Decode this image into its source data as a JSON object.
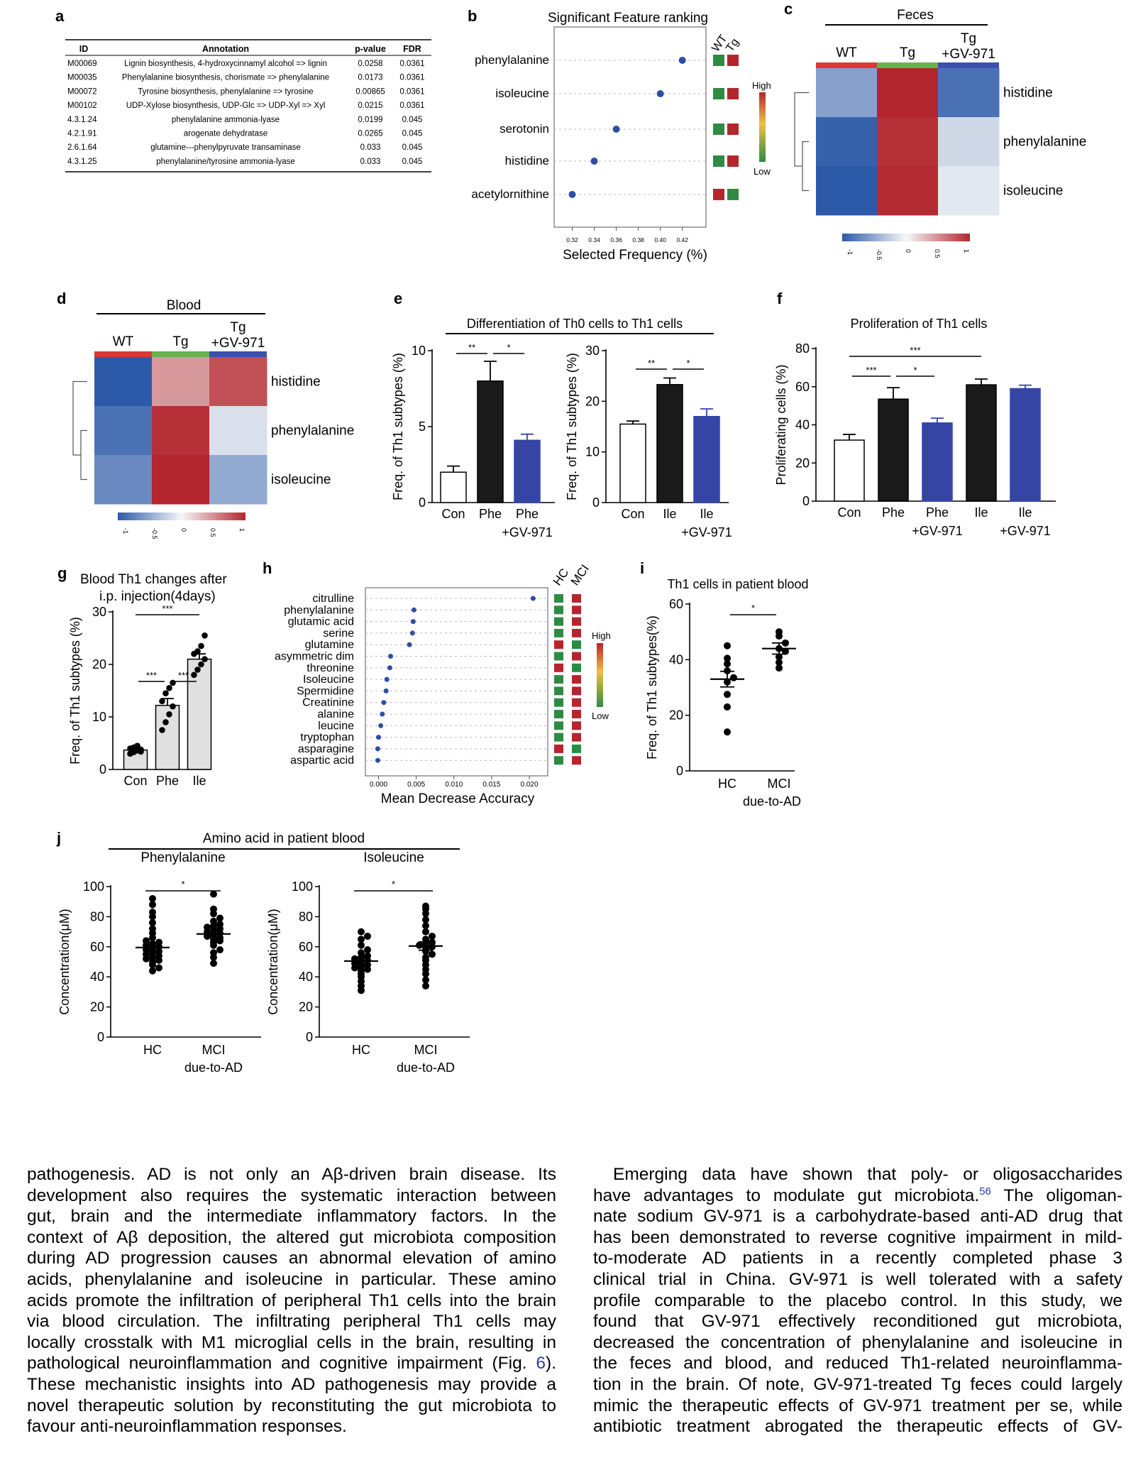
{
  "figure": {
    "panel_letters": {
      "a": "a",
      "b": "b",
      "c": "c",
      "d": "d",
      "e": "e",
      "f": "f",
      "g": "g",
      "h": "h",
      "i": "i",
      "j": "j"
    },
    "panel_a": {
      "headers": [
        "ID",
        "Annotation",
        "p-value",
        "FDR"
      ],
      "rows": [
        [
          "M00069",
          "Lignin biosynthesis, 4-hydroxycinnamyl alcohol => lignin",
          "0.0258",
          "0.0361"
        ],
        [
          "M00035",
          "Phenylalanine biosynthesis, chorismate => phenylalanine",
          "0.0173",
          "0.0361"
        ],
        [
          "M00072",
          "Tyrosine biosynthesis, phenylalanine => tyrosine",
          "0.00865",
          "0.0361"
        ],
        [
          "M00102",
          "UDP-Xylose biosynthesis, UDP-Glc => UDP-Xyl => Xyl",
          "0.0215",
          "0.0361"
        ],
        [
          "4.3.1.24",
          "phenylalanine ammonia-lyase",
          "0.0199",
          "0.045"
        ],
        [
          "4.2.1.91",
          "arogenate dehydratase",
          "0.0265",
          "0.045"
        ],
        [
          "2.6.1.64",
          "glutamine---phenylpyruvate transaminase",
          "0.033",
          "0.045"
        ],
        [
          "4.3.1.25",
          "phenylalanine/tyrosine ammonia-lyase",
          "0.033",
          "0.045"
        ]
      ]
    },
    "panel_b": {
      "title": "Significant Feature ranking",
      "xlabel": "Selected Frequency (%)",
      "col_labels": [
        "WT",
        "Tg"
      ],
      "legend_high": "High",
      "legend_low": "Low",
      "xticks": [
        "0.32",
        "0.34",
        "0.36",
        "0.38",
        "0.40",
        "0.42"
      ],
      "features": [
        "phenylalanine",
        "isoleucine",
        "serotonin",
        "histidine",
        "acetylornithine"
      ],
      "values": [
        0.42,
        0.4,
        0.36,
        0.34,
        0.32
      ],
      "tiles": [
        [
          "#2e8b43",
          "#b3262e"
        ],
        [
          "#2e8b43",
          "#b3262e"
        ],
        [
          "#2e8b43",
          "#b3262e"
        ],
        [
          "#2e8b43",
          "#b3262e"
        ],
        [
          "#b3262e",
          "#2e8b43"
        ]
      ]
    },
    "panel_c": {
      "title": "Feces",
      "groups": [
        "WT",
        "Tg",
        "Tg\n+GV-971"
      ],
      "group_colors": [
        "#d93a33",
        "#69b24e",
        "#3a4fb0"
      ],
      "rows": [
        "histidine",
        "phenylalanine",
        "isoleucine"
      ],
      "values": [
        [
          -0.55,
          1.0,
          -0.85
        ],
        [
          -0.95,
          0.95,
          -0.2
        ],
        [
          -1.0,
          0.98,
          -0.1
        ]
      ],
      "scale_ticks": [
        "-1",
        "-0.5",
        "0",
        "0.5",
        "1"
      ]
    },
    "panel_d": {
      "title": "Blood",
      "groups": [
        "WT",
        "Tg",
        "Tg\n+GV-971"
      ],
      "group_colors": [
        "#d93a33",
        "#69b24e",
        "#3a4fb0"
      ],
      "rows": [
        "histidine",
        "phenylalanine",
        "isoleucine"
      ],
      "values": [
        [
          -1.0,
          0.45,
          0.8
        ],
        [
          -0.85,
          0.95,
          -0.15
        ],
        [
          -0.7,
          1.0,
          -0.5
        ]
      ],
      "scale_ticks": [
        "-1",
        "-0.5",
        "0",
        "0.5",
        "1"
      ]
    },
    "panel_e": {
      "title": "Differentiation of Th0 cells to Th1 cells",
      "ylabel": "Freq. of Th1 subtypes (%)"
    },
    "panel_f": {
      "title": "Proliferation of Th1 cells",
      "ylabel": "Proliferating cells (%)"
    },
    "panel_g": {
      "title": "Blood Th1 changes after\ni.p. injection(4days)",
      "ylabel": "Freq. of Th1 subtypes (%)"
    },
    "panel_h": {
      "xlabel": "Mean Decrease Accuracy",
      "col_labels": [
        "HC",
        "MCI"
      ],
      "legend_high": "High",
      "legend_low": "Low",
      "xticks": [
        "0.000",
        "0.005",
        "0.010",
        "0.015",
        "0.020"
      ],
      "features": [
        "citrulline",
        "phenylalanine",
        "glutamic acid",
        "serine",
        "glutamine",
        "asymmetric dim",
        "threonine",
        "Isoleucine",
        "Spermidine",
        "Creatinine",
        "alanine",
        "leucine",
        "tryptophan",
        "asparagine",
        "aspartic acid"
      ],
      "values": [
        0.0205,
        0.0047,
        0.0046,
        0.0045,
        0.0041,
        0.0016,
        0.0015,
        0.0011,
        0.001,
        0.0007,
        0.0005,
        0.0003,
        0.0,
        -0.0001,
        -0.0001
      ],
      "tiles": [
        [
          "#2e8b43",
          "#b3262e"
        ],
        [
          "#2e8b43",
          "#b3262e"
        ],
        [
          "#2e8b43",
          "#b3262e"
        ],
        [
          "#2e8b43",
          "#b3262e"
        ],
        [
          "#b3262e",
          "#2e8b43"
        ],
        [
          "#2e8b43",
          "#b3262e"
        ],
        [
          "#b3262e",
          "#2e8b43"
        ],
        [
          "#2e8b43",
          "#b3262e"
        ],
        [
          "#2e8b43",
          "#b3262e"
        ],
        [
          "#2e8b43",
          "#b3262e"
        ],
        [
          "#2e8b43",
          "#b3262e"
        ],
        [
          "#2e8b43",
          "#b3262e"
        ],
        [
          "#2e8b43",
          "#b3262e"
        ],
        [
          "#b3262e",
          "#2e8b43"
        ],
        [
          "#2e8b43",
          "#b3262e"
        ]
      ]
    },
    "panel_i": {
      "title": "Th1 cells in patient blood",
      "ylabel": "Freq. of Th1 subtypes(%)"
    },
    "panel_j": {
      "title": "Amino acid in patient blood",
      "ylabel": "Concentration(μM)"
    },
    "colorbar": {
      "high": "#b3262e",
      "mid": "#f7f7f7",
      "low": "#2c5aa8"
    }
  },
  "chart_data": [
    {
      "panel": "e-left",
      "type": "bar",
      "title": "Differentiation of Th0 cells to Th1 cells",
      "ylabel": "Freq. of Th1 subtypes (%)",
      "categories": [
        "Con",
        "Phe",
        "Phe\n+GV-971"
      ],
      "values": [
        2.0,
        8.0,
        4.1
      ],
      "errors": [
        0.4,
        1.3,
        0.4
      ],
      "fills": [
        "#ffffff",
        "#1a1a1a",
        "#3445a6"
      ],
      "ylim": [
        0,
        10
      ],
      "yticks": [
        "0",
        "5",
        "10"
      ],
      "sig": [
        {
          "from": 0,
          "to": 1,
          "label": "**",
          "level": 1
        },
        {
          "from": 1,
          "to": 2,
          "label": "*",
          "level": 1
        }
      ]
    },
    {
      "panel": "e-right",
      "type": "bar",
      "ylabel": "Freq. of Th1 subtypes (%)",
      "categories": [
        "Con",
        "Ile",
        "Ile\n+GV-971"
      ],
      "values": [
        15.5,
        23.3,
        17.0
      ],
      "errors": [
        0.6,
        1.3,
        1.5
      ],
      "fills": [
        "#ffffff",
        "#1a1a1a",
        "#3445a6"
      ],
      "ylim": [
        0,
        30
      ],
      "yticks": [
        "0",
        "10",
        "20",
        "30"
      ],
      "sig": [
        {
          "from": 0,
          "to": 1,
          "label": "**",
          "level": 1
        },
        {
          "from": 1,
          "to": 2,
          "label": "*",
          "level": 1
        }
      ]
    },
    {
      "panel": "f",
      "type": "bar",
      "title": "Proliferation of Th1 cells",
      "ylabel": "Proliferating cells (%)",
      "categories": [
        "Con",
        "Phe",
        "Phe\n+GV-971",
        "Ile",
        "Ile\n+GV-971"
      ],
      "values": [
        32.0,
        53.5,
        41.0,
        61.0,
        59.0
      ],
      "errors": [
        3.0,
        6.0,
        2.5,
        3.0,
        1.8
      ],
      "fills": [
        "#ffffff",
        "#1a1a1a",
        "#3445a6",
        "#1a1a1a",
        "#3445a6"
      ],
      "ylim": [
        0,
        80
      ],
      "yticks": [
        "0",
        "20",
        "40",
        "60",
        "80"
      ],
      "sig": [
        {
          "from": 0,
          "to": 1,
          "label": "***",
          "level": 1
        },
        {
          "from": 1,
          "to": 2,
          "label": "*",
          "level": 1
        },
        {
          "from": 0,
          "to": 3,
          "label": "***",
          "level": 2
        }
      ]
    },
    {
      "panel": "g",
      "type": "bar",
      "title": "Blood Th1 changes after\ni.p. injection(4days)",
      "ylabel": "Freq. of Th1 subtypes (%)",
      "categories": [
        "Con",
        "Phe",
        "Ile"
      ],
      "values": [
        3.7,
        12.2,
        21.0
      ],
      "errors": [
        0.3,
        1.3,
        1.0
      ],
      "points": [
        [
          3.0,
          3.3,
          3.6,
          3.8,
          4.0,
          4.2,
          4.5,
          3.4
        ],
        [
          7.5,
          9.0,
          10.5,
          12.0,
          13.0,
          14.5,
          15.5,
          16.5
        ],
        [
          18.0,
          19.0,
          20.0,
          21.0,
          22.0,
          22.5,
          23.5,
          25.5
        ]
      ],
      "fills": [
        "#e0e0e0",
        "#e0e0e0",
        "#e0e0e0"
      ],
      "ylim": [
        0,
        30
      ],
      "yticks": [
        "0",
        "10",
        "20",
        "30"
      ],
      "sig": [
        {
          "from": 0,
          "to": 1,
          "label": "***",
          "level": 1
        },
        {
          "from": 1,
          "to": 2,
          "label": "***",
          "level": 1
        },
        {
          "from": 0,
          "to": 2,
          "label": "***",
          "level": 2
        }
      ]
    },
    {
      "panel": "i",
      "type": "scatter",
      "title": "Th1 cells in patient blood",
      "ylabel": "Freq. of Th1 subtypes(%)",
      "categories": [
        "HC",
        "MCI\ndue-to-AD"
      ],
      "means": [
        33.0,
        44.0
      ],
      "sem": [
        2.8,
        2.0
      ],
      "points": [
        [
          14.0,
          23.0,
          27.5,
          32.0,
          33.5,
          36.0,
          38.5,
          40.5,
          45.0
        ],
        [
          37.0,
          39.0,
          41.0,
          43.0,
          44.0,
          46.0,
          48.5,
          50.0
        ]
      ],
      "ylim": [
        0,
        60
      ],
      "yticks": [
        "0",
        "20",
        "40",
        "60"
      ],
      "sig": [
        {
          "from": 0,
          "to": 1,
          "label": "*",
          "level": 1
        }
      ]
    },
    {
      "panel": "j-left",
      "type": "scatter",
      "title": "Phenylalanine",
      "ylabel": "Concentration(μM)",
      "categories": [
        "HC",
        "MCI\ndue-to-AD"
      ],
      "means": [
        59.5,
        68.5
      ],
      "sem": [
        2.6,
        2.3
      ],
      "points": [
        [
          44,
          46,
          48,
          50,
          51,
          52,
          53,
          54,
          55,
          56,
          57,
          58,
          59,
          60,
          61,
          62,
          63,
          64,
          66,
          69,
          72,
          76,
          80,
          83,
          88,
          92
        ],
        [
          49,
          53,
          56,
          58,
          61,
          63,
          64,
          65,
          66,
          67,
          68,
          69,
          70,
          71,
          72,
          73,
          74,
          75,
          77,
          79,
          82,
          85,
          95
        ]
      ],
      "ylim": [
        0,
        100
      ],
      "yticks": [
        "0",
        "20",
        "40",
        "60",
        "80",
        "100"
      ],
      "sig": [
        {
          "from": 0,
          "to": 1,
          "label": "*",
          "level": 1
        }
      ]
    },
    {
      "panel": "j-right",
      "type": "scatter",
      "title": "Isoleucine",
      "ylabel": "Concentration(μM)",
      "categories": [
        "HC",
        "MCI\ndue-to-AD"
      ],
      "means": [
        50.5,
        60.5
      ],
      "sem": [
        2.3,
        2.8
      ],
      "points": [
        [
          31,
          34,
          37,
          40,
          42,
          44,
          45,
          46,
          47,
          48,
          49,
          50,
          51,
          52,
          53,
          54,
          56,
          58,
          61,
          65,
          67,
          70
        ],
        [
          34,
          38,
          42,
          45,
          48,
          51,
          53,
          55,
          57,
          59,
          60,
          61,
          62,
          63,
          65,
          67,
          70,
          74,
          78,
          82,
          85,
          87
        ]
      ],
      "ylim": [
        0,
        100
      ],
      "yticks": [
        "0",
        "20",
        "40",
        "60",
        "80",
        "100"
      ],
      "sig": [
        {
          "from": 0,
          "to": 1,
          "label": "*",
          "level": 1
        }
      ]
    }
  ],
  "article": {
    "left_lines": [
      "pathogenesis. AD is not only an Aβ-driven brain disease. Its",
      "development also requires the systematic interaction between",
      "gut, brain and the intermediate inflammatory factors. In the",
      "context of Aβ deposition, the altered gut microbiota composition",
      "during AD progression causes an abnormal elevation of amino",
      "acids, phenylalanine and isoleucine in particular. These amino",
      "acids promote the infiltration of peripheral Th1 cells into the brain",
      "via blood circulation. The infiltrating peripheral Th1 cells may",
      "locally crosstalk with M1 microglial cells in the brain, resulting in",
      "pathological neuroinflammation and cognitive impairment (Fig.",
      "These mechanistic insights into AD pathogenesis may provide a",
      "novel therapeutic solution by reconstituting the gut microbiota to",
      "favour anti-neuroinflammation responses."
    ],
    "fig_ref": "6",
    "fig_ref_close": ").",
    "right_lines": [
      "Emerging data have shown that poly- or oligosaccharides",
      "have advantages to modulate gut microbiota.",
      "The oligoman-",
      "nate sodium GV-971 is a carbohydrate-based anti-AD drug that",
      "has been demonstrated to reverse cognitive impairment in mild-",
      "to-moderate AD patients in a recently completed phase 3",
      "clinical trial in China. GV-971 is well tolerated with a safety",
      "profile comparable to the placebo control. In this study, we",
      "found that GV-971 effectively reconditioned gut microbiota,",
      "decreased the concentration of phenylalanine and isoleucine in",
      "the feces and blood, and reduced Th1-related neuroinflamma-",
      "tion in the brain. Of note, GV-971-treated Tg feces could largely",
      "mimic the therapeutic effects of GV-971 treatment per se, while",
      "antibiotic treatment abrogated the therapeutic effects of GV-"
    ],
    "ref_number": "56"
  }
}
